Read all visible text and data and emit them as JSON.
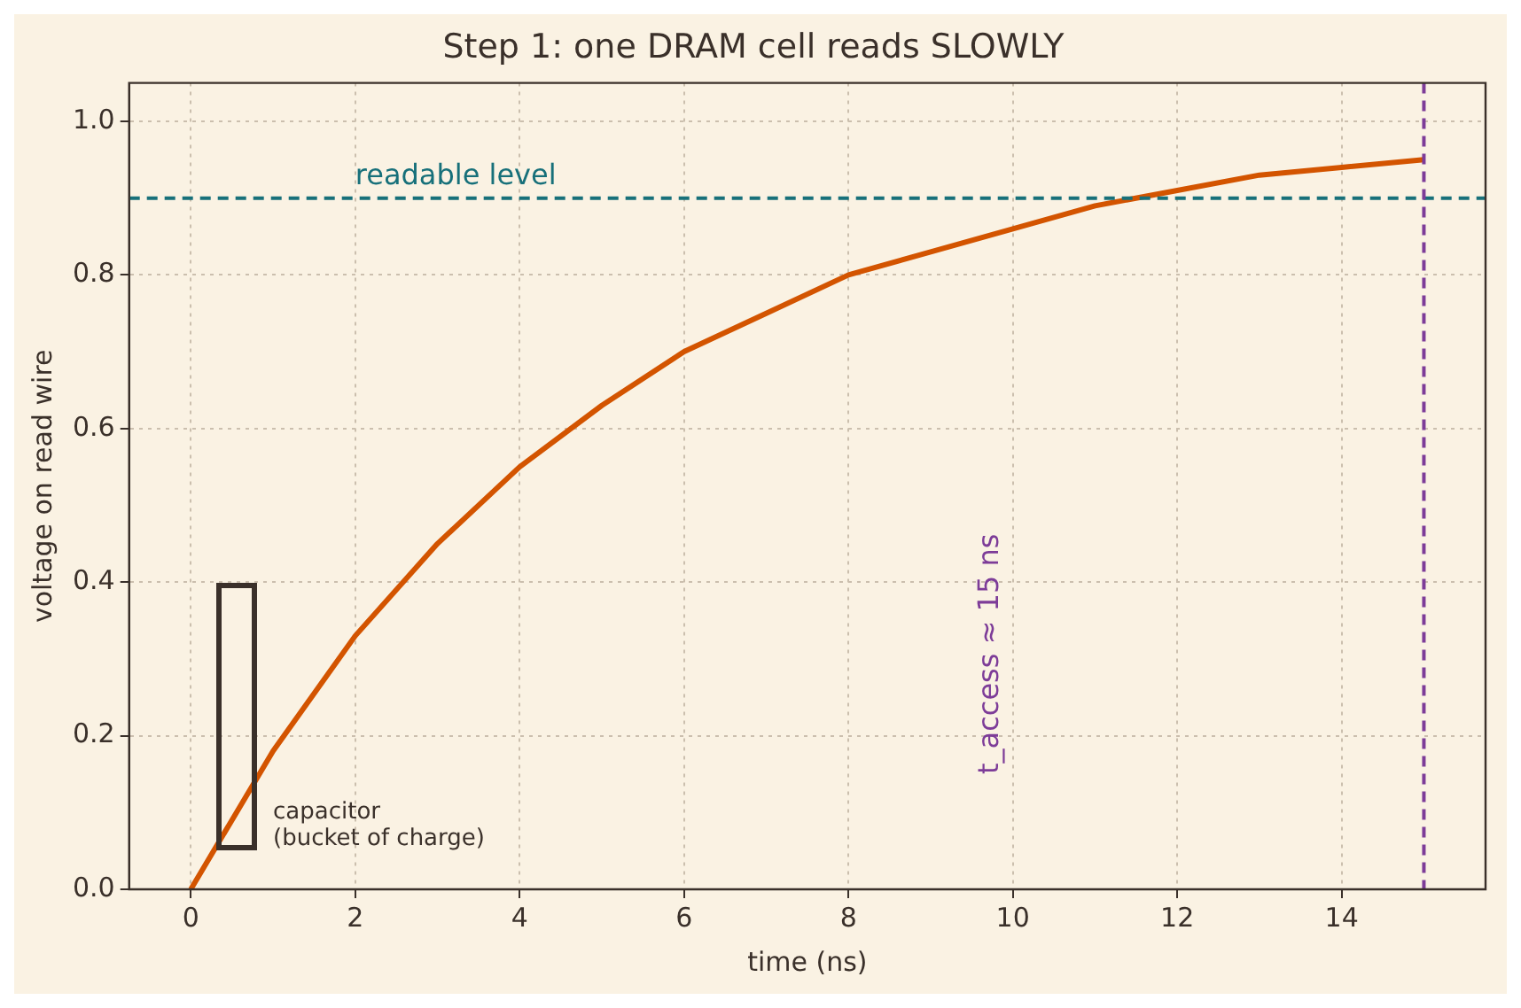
{
  "chart_data": {
    "type": "line",
    "title": "Step 1: one DRAM cell reads SLOWLY",
    "xlabel": "time (ns)",
    "ylabel": "voltage on read wire",
    "x": [
      0,
      1,
      2,
      3,
      4,
      5,
      6,
      7,
      8,
      9,
      10,
      11,
      12,
      13,
      14,
      15
    ],
    "series": [
      {
        "color": "#d35400",
        "values": [
          0,
          0.18,
          0.33,
          0.45,
          0.55,
          0.63,
          0.7,
          0.75,
          0.8,
          0.83,
          0.86,
          0.89,
          0.91,
          0.93,
          0.94,
          0.95
        ]
      }
    ],
    "xlim": [
      -0.75,
      15.75
    ],
    "ylim": [
      0,
      1.05
    ],
    "xticks": [
      0,
      2,
      4,
      6,
      8,
      10,
      12,
      14
    ],
    "yticks": [
      {
        "value": 0,
        "label": "0.0"
      },
      {
        "value": 0.2,
        "label": "0.2"
      },
      {
        "value": 0.4,
        "label": "0.4"
      },
      {
        "value": 0.6,
        "label": "0.6"
      },
      {
        "value": 0.8,
        "label": "0.8"
      },
      {
        "value": 1,
        "label": "1.0"
      }
    ],
    "grid": true,
    "marker": "none",
    "line_style": "solid",
    "ref_lines": [
      {
        "axis": "y",
        "value": 0.9,
        "label": "readable level",
        "color": "#17707a",
        "line_style": "dashed"
      },
      {
        "axis": "x",
        "value": 15,
        "label": "t_access ≈ 15 ns",
        "color": "#7d3c98",
        "line_style": "dashed"
      }
    ],
    "annotations": [
      "capacitor\n(bucket of charge)"
    ]
  }
}
